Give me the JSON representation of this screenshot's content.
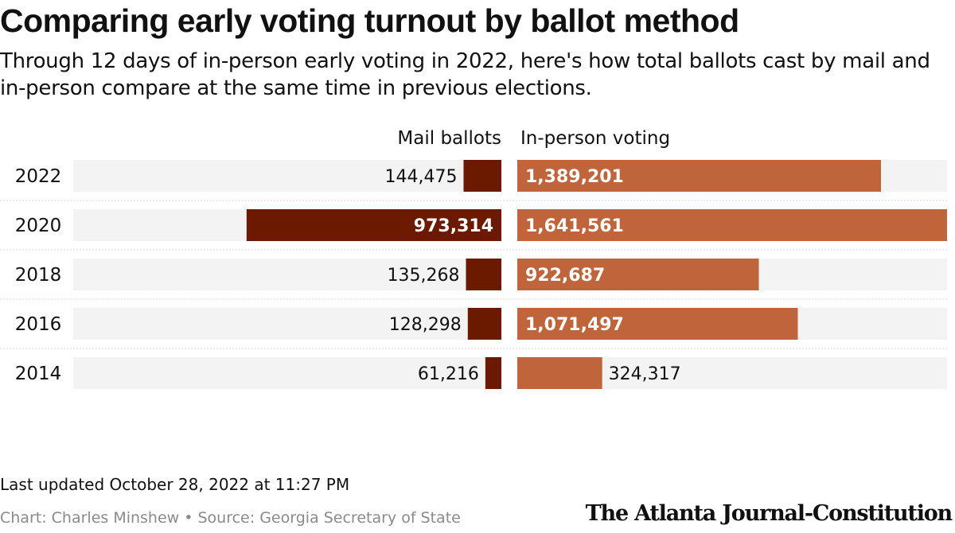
{
  "title": "Comparing early voting turnout by ballot method",
  "subtitle": "Through 12 days of in-person early voting in 2022, here's how total ballots cast by mail and in-person compare at the same time in previous elections.",
  "footer": {
    "updated": "Last updated October 28, 2022 at 11:27 PM",
    "credits": "Chart: Charles Minshew • Source: Georgia Secretary of State",
    "logo": "The Atlanta Journal-Constitution"
  },
  "colors": {
    "mail": "#6b1a00",
    "in_person": "#c0643c",
    "row_background": "#f3f3f3",
    "divider": "#d8d8d8"
  },
  "chart_data": {
    "type": "bar",
    "orientation": "horizontal",
    "layout": "diverging",
    "categories": [
      "2022",
      "2020",
      "2018",
      "2016",
      "2014"
    ],
    "series": [
      {
        "name": "Mail ballots",
        "direction": "left",
        "values": [
          144475,
          973314,
          135268,
          128298,
          61216
        ],
        "labels": [
          "144,475",
          "973,314",
          "135,268",
          "128,298",
          "61,216"
        ]
      },
      {
        "name": "In-person voting",
        "direction": "right",
        "values": [
          1389201,
          1641561,
          922687,
          1071497,
          324317
        ],
        "labels": [
          "1,389,201",
          "1,641,561",
          "922,687",
          "1,071,497",
          "324,317"
        ]
      }
    ],
    "xlim": [
      0,
      1641561
    ],
    "grid": false,
    "legend": "column headers above bars"
  }
}
